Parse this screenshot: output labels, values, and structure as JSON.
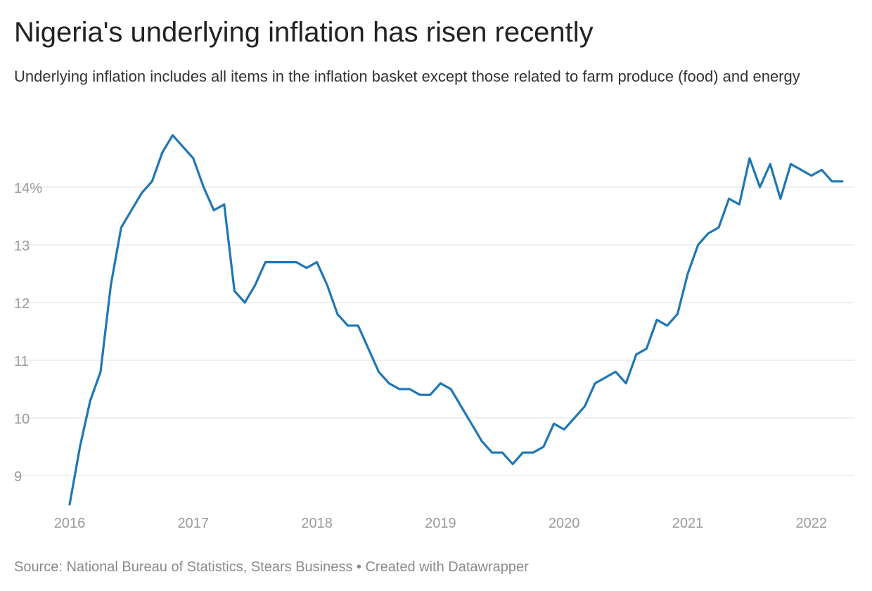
{
  "title": "Nigeria's underlying inflation has risen recently",
  "subtitle": "Underlying inflation includes all items in the inflation basket except those related to farm produce (food) and energy",
  "footer": "Source: National Bureau of Statistics, Stears Business • Created with Datawrapper",
  "colors": {
    "line": "#1f77b4",
    "grid": "#e0e0e0",
    "tick": "#9a9a9a"
  },
  "chart_data": {
    "type": "line",
    "title": "Nigeria's underlying inflation has risen recently",
    "xlabel": "",
    "ylabel": "",
    "ylim": [
      8.5,
      15.0
    ],
    "xlim": [
      "2016-01",
      "2022-05"
    ],
    "y_ticks": [
      {
        "value": 9,
        "label": "9"
      },
      {
        "value": 10,
        "label": "10"
      },
      {
        "value": 11,
        "label": "11"
      },
      {
        "value": 12,
        "label": "12"
      },
      {
        "value": 13,
        "label": "13"
      },
      {
        "value": 14,
        "label": "14%"
      }
    ],
    "x_ticks": [
      {
        "value": "2016-01",
        "label": "2016"
      },
      {
        "value": "2017-01",
        "label": "2017"
      },
      {
        "value": "2018-01",
        "label": "2018"
      },
      {
        "value": "2019-01",
        "label": "2019"
      },
      {
        "value": "2020-01",
        "label": "2020"
      },
      {
        "value": "2021-01",
        "label": "2021"
      },
      {
        "value": "2022-01",
        "label": "2022"
      }
    ],
    "grid": true,
    "series": [
      {
        "name": "",
        "x": [
          "2016-01",
          "2016-02",
          "2016-03",
          "2016-04",
          "2016-05",
          "2016-06",
          "2016-07",
          "2016-08",
          "2016-09",
          "2016-10",
          "2016-11",
          "2016-12",
          "2017-01",
          "2017-02",
          "2017-03",
          "2017-04",
          "2017-05",
          "2017-06",
          "2017-07",
          "2017-08",
          "2017-09",
          "2017-10",
          "2017-11",
          "2017-12",
          "2018-01",
          "2018-02",
          "2018-03",
          "2018-04",
          "2018-05",
          "2018-06",
          "2018-07",
          "2018-08",
          "2018-09",
          "2018-10",
          "2018-11",
          "2018-12",
          "2019-01",
          "2019-02",
          "2019-03",
          "2019-04",
          "2019-05",
          "2019-06",
          "2019-07",
          "2019-08",
          "2019-09",
          "2019-10",
          "2019-11",
          "2019-12",
          "2020-01",
          "2020-02",
          "2020-03",
          "2020-04",
          "2020-05",
          "2020-06",
          "2020-07",
          "2020-08",
          "2020-09",
          "2020-10",
          "2020-11",
          "2020-12",
          "2021-01",
          "2021-02",
          "2021-03",
          "2021-04",
          "2021-05",
          "2021-06",
          "2021-07",
          "2021-08",
          "2021-09",
          "2021-10",
          "2021-11",
          "2021-12",
          "2022-01",
          "2022-02",
          "2022-03",
          "2022-04"
        ],
        "values": [
          8.5,
          9.5,
          10.3,
          10.8,
          12.3,
          13.3,
          13.6,
          13.9,
          14.1,
          14.6,
          14.9,
          14.7,
          14.5,
          14.0,
          13.6,
          13.7,
          12.2,
          12.0,
          12.3,
          12.7,
          12.7,
          12.7,
          12.7,
          12.6,
          12.7,
          12.3,
          11.8,
          11.6,
          11.6,
          11.2,
          10.8,
          10.6,
          10.5,
          10.5,
          10.4,
          10.4,
          10.6,
          10.5,
          10.2,
          9.9,
          9.6,
          9.4,
          9.4,
          9.2,
          9.4,
          9.4,
          9.5,
          9.9,
          9.8,
          10.0,
          10.2,
          10.6,
          10.7,
          10.8,
          10.6,
          11.1,
          11.2,
          11.7,
          11.6,
          11.8,
          12.5,
          13.0,
          13.2,
          13.3,
          13.8,
          13.7,
          14.5,
          14.0,
          14.4,
          13.8,
          14.4,
          14.3,
          14.2,
          14.3,
          14.1,
          14.1
        ]
      }
    ]
  }
}
